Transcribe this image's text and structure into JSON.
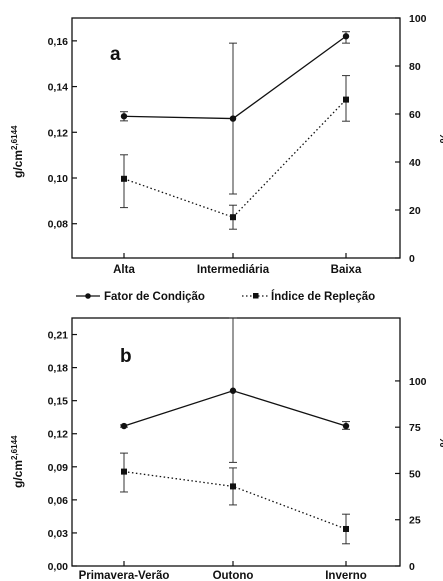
{
  "legend": {
    "items": [
      {
        "label": "Fator de Condição",
        "style": "solid-circle"
      },
      {
        "label": "Índice de Repleção",
        "style": "dotted-square"
      }
    ]
  },
  "chart_data": [
    {
      "type": "line",
      "panel_label": "a",
      "categories": [
        "Alta",
        "Intermediária",
        "Baixa"
      ],
      "ylabel": "g/cm",
      "ylabel_superscript": "2,6144",
      "y2label": "%",
      "ylim": [
        0.065,
        0.17
      ],
      "y2lim": [
        0,
        100
      ],
      "yticks": [
        "0,08",
        "0,10",
        "0,12",
        "0,14",
        "0,16"
      ],
      "y2ticks": [
        "0",
        "20",
        "40",
        "60",
        "80",
        "100"
      ],
      "grid": false,
      "series": [
        {
          "name": "Fator de Condição",
          "axis": "left",
          "marker": "circle",
          "line": "solid",
          "values": [
            0.127,
            0.126,
            0.162
          ],
          "err_low": [
            0.125,
            0.093,
            0.159
          ],
          "err_high": [
            0.129,
            0.159,
            0.164
          ]
        },
        {
          "name": "Índice de Repleção",
          "axis": "right",
          "marker": "square",
          "line": "dotted",
          "values": [
            33,
            17,
            66
          ],
          "err_low": [
            21,
            12,
            57
          ],
          "err_high": [
            43,
            22,
            76
          ]
        }
      ]
    },
    {
      "type": "line",
      "panel_label": "b",
      "categories": [
        "Primavera-Verão",
        "Outono",
        "Inverno"
      ],
      "ylabel": "g/cm",
      "ylabel_superscript": "2,6144",
      "y2label": "%",
      "ylim": [
        0,
        0.225
      ],
      "y2lim": [
        0,
        134
      ],
      "yticks": [
        "0,00",
        "0,03",
        "0,06",
        "0,09",
        "0,12",
        "0,15",
        "0,18",
        "0,21"
      ],
      "y2ticks": [
        "0",
        "25",
        "50",
        "75",
        "100"
      ],
      "grid": false,
      "series": [
        {
          "name": "Fator de Condição",
          "axis": "left",
          "marker": "circle",
          "line": "solid",
          "values": [
            0.127,
            0.159,
            0.127
          ],
          "err_low": [
            0.126,
            0.094,
            0.124
          ],
          "err_high": [
            0.128,
            0.225,
            0.131
          ]
        },
        {
          "name": "Índice de Repleção",
          "axis": "right",
          "marker": "square",
          "line": "dotted",
          "values": [
            51,
            43,
            20
          ],
          "err_low": [
            40,
            33,
            12
          ],
          "err_high": [
            61,
            53,
            28
          ]
        }
      ]
    }
  ]
}
